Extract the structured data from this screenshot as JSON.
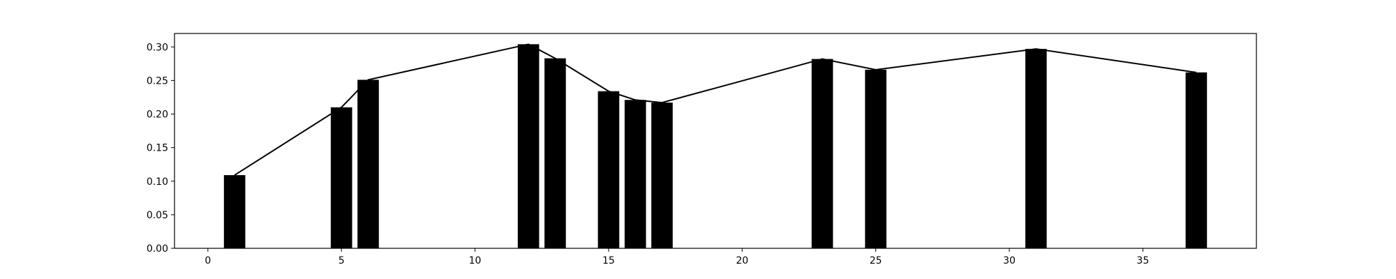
{
  "chart_data": {
    "type": "bar",
    "title": "",
    "xlabel": "",
    "ylabel": "",
    "xlim": [
      -1.25,
      39.25
    ],
    "ylim": [
      0.0,
      0.32
    ],
    "grid": false,
    "x_ticks": [
      0,
      5,
      10,
      15,
      20,
      25,
      30,
      35
    ],
    "x_tick_labels": [
      "0",
      "5",
      "10",
      "15",
      "20",
      "25",
      "30",
      "35"
    ],
    "y_ticks": [
      0.0,
      0.05,
      0.1,
      0.15,
      0.2,
      0.25,
      0.3
    ],
    "y_tick_labels": [
      "0.00",
      "0.05",
      "0.10",
      "0.15",
      "0.20",
      "0.25",
      "0.30"
    ],
    "bar_width": 0.8,
    "bar_color": "#000000",
    "line_color": "#000000",
    "series": [
      {
        "type": "bar",
        "x": [
          1,
          5,
          6,
          12,
          13,
          15,
          16,
          17,
          23,
          25,
          31,
          37
        ],
        "values": [
          0.109,
          0.21,
          0.251,
          0.304,
          0.283,
          0.234,
          0.221,
          0.217,
          0.282,
          0.266,
          0.297,
          0.262
        ]
      },
      {
        "type": "line",
        "x": [
          1,
          5,
          6,
          12,
          13,
          15,
          16,
          17,
          23,
          25,
          31,
          37
        ],
        "values": [
          0.109,
          0.21,
          0.251,
          0.304,
          0.283,
          0.234,
          0.221,
          0.217,
          0.282,
          0.266,
          0.297,
          0.262
        ]
      }
    ]
  }
}
